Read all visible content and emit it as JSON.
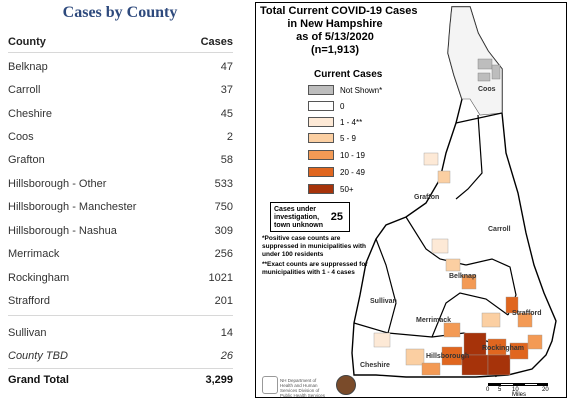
{
  "left": {
    "title": "Cases by County",
    "columns": {
      "county": "County",
      "cases": "Cases"
    },
    "rows": [
      {
        "county": "Belknap",
        "cases": "47"
      },
      {
        "county": "Carroll",
        "cases": "37"
      },
      {
        "county": "Cheshire",
        "cases": "45"
      },
      {
        "county": "Coos",
        "cases": "2"
      },
      {
        "county": "Grafton",
        "cases": "58"
      },
      {
        "county": "Hillsborough - Other",
        "cases": "533"
      },
      {
        "county": "Hillsborough - Manchester",
        "cases": "750"
      },
      {
        "county": "Hillsborough - Nashua",
        "cases": "309"
      },
      {
        "county": "Merrimack",
        "cases": "256"
      },
      {
        "county": "Rockingham",
        "cases": "1021"
      },
      {
        "county": "Strafford",
        "cases": "201"
      },
      {
        "county": "Sullivan",
        "cases": "14"
      },
      {
        "county": "County TBD",
        "cases": "26"
      }
    ],
    "total": {
      "county": "Grand Total",
      "cases": "3,299"
    }
  },
  "map": {
    "title_lines": [
      "Total Current COVID-19 Cases",
      "in New Hampshire",
      "as of 5/13/2020",
      "(n=1,913)"
    ],
    "legend_title": "Current Cases",
    "legend": [
      {
        "label": "Not Shown*",
        "color": "#bdbdbd"
      },
      {
        "label": "0",
        "color": "#ffffff"
      },
      {
        "label": "1 - 4**",
        "color": "#fde9d6"
      },
      {
        "label": "5 - 9",
        "color": "#fbcfa2"
      },
      {
        "label": "10 - 19",
        "color": "#f39a55"
      },
      {
        "label": "20 - 49",
        "color": "#e0661f"
      },
      {
        "label": "50+",
        "color": "#a6330a"
      }
    ],
    "investigation_text": "Cases under investigation, town unknown",
    "investigation_count": "25",
    "note1": "*Positive case counts are suppressed in municipalities with under 100 residents",
    "note2": "**Exact counts are suppressed for municipalities with 1 - 4 cases",
    "county_labels": {
      "coos": "Coos",
      "grafton": "Grafton",
      "carroll": "Carroll",
      "belknap": "Belknap",
      "sullivan": "Sullivan",
      "merrimack": "Merrimack",
      "strafford": "Strafford",
      "cheshire": "Cheshire",
      "hillsborough": "Hillsborough",
      "rockingham": "Rockingham"
    },
    "logo_text": "NH Department of Health and Human Services Division of Public Health Services",
    "scale_ticks": [
      "0",
      "5",
      "10",
      "20"
    ],
    "scale_unit": "Miles"
  }
}
